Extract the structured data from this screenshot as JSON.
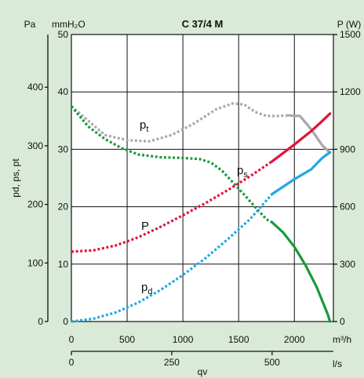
{
  "chart_data": {
    "type": "line",
    "title": "C 37/4 M",
    "x_axis": {
      "range": [
        0,
        2350
      ],
      "unit": "m³/h",
      "ticks": [
        "0",
        "500",
        "1000",
        "1500",
        "2000"
      ]
    },
    "x2_axis": {
      "unit": "l/s",
      "ticks": [
        "0",
        "250",
        "500"
      ],
      "tick_values_m3h": [
        0,
        900,
        1800
      ]
    },
    "xlabel": "qv",
    "y_axis_pa": {
      "unit": "Pa",
      "range": [
        0,
        490
      ],
      "ticks": [
        "0",
        "100",
        "200",
        "300",
        "400"
      ],
      "label": "pd, ps, pt"
    },
    "y_axis_mmh2o": {
      "unit": "mmH₂O",
      "range": [
        0,
        50
      ],
      "ticks": [
        "0",
        "10",
        "20",
        "30",
        "40",
        "50"
      ]
    },
    "y_axis_power": {
      "unit": "P (W)",
      "range": [
        0,
        1500
      ],
      "ticks": [
        "0",
        "300",
        "600",
        "900",
        "1200",
        "1500"
      ]
    },
    "series": [
      {
        "name": "pt",
        "axis": "mmh2o",
        "color": "#a8a8a8",
        "x": [
          0,
          150,
          300,
          500,
          700,
          900,
          1100,
          1300,
          1450,
          1550,
          1650,
          1750,
          1850,
          1950,
          2050,
          2150,
          2250,
          2320
        ],
        "y": [
          37.5,
          35,
          32.5,
          31.6,
          31.4,
          32.5,
          34.5,
          37,
          38,
          37.8,
          36.5,
          35.8,
          35.8,
          35.9,
          35.8,
          33.5,
          30.7,
          29.4
        ],
        "solid_from_x": 1950
      },
      {
        "name": "ps",
        "axis": "mmh2o",
        "color": "#1a9a3a",
        "x": [
          0,
          150,
          300,
          450,
          600,
          800,
          1000,
          1150,
          1250,
          1350,
          1450,
          1550,
          1650,
          1750,
          1800,
          1900,
          2000,
          2100,
          2200,
          2300,
          2320
        ],
        "y": [
          37.5,
          34,
          31.8,
          30.2,
          29.1,
          28.6,
          28.5,
          28.3,
          27.7,
          26.3,
          24.2,
          22.1,
          19.9,
          17.8,
          17.3,
          15.5,
          13,
          9.8,
          6,
          1.2,
          0
        ],
        "solid_from_x": 1800
      },
      {
        "name": "P",
        "axis": "power",
        "color": "#e0143c",
        "x": [
          0,
          200,
          400,
          600,
          800,
          1000,
          1200,
          1400,
          1600,
          1800,
          2000,
          2150,
          2250,
          2320
        ],
        "y": [
          365,
          372,
          398,
          440,
          495,
          555,
          618,
          686,
          758,
          837,
          925,
          995,
          1048,
          1087
        ],
        "solid_from_x": 1800
      },
      {
        "name": "pd",
        "axis": "mmh2o",
        "color": "#23a8e0",
        "x": [
          0,
          200,
          400,
          600,
          800,
          1000,
          1200,
          1400,
          1600,
          1800,
          2000,
          2150,
          2250,
          2320
        ],
        "y": [
          0,
          0.5,
          1.6,
          3.3,
          5.5,
          8.1,
          11,
          14.3,
          17.8,
          22.2,
          24.8,
          26.5,
          28.5,
          29.5
        ],
        "solid_from_x": 1800
      }
    ],
    "curve_labels": [
      {
        "text": "p",
        "sub": "t",
        "series": "pt"
      },
      {
        "text": "p",
        "sub": "s",
        "series": "ps"
      },
      {
        "text": "P",
        "sub": "",
        "series": "P"
      },
      {
        "text": "p",
        "sub": "d",
        "series": "pd"
      }
    ],
    "grid": true,
    "legend": "none"
  }
}
